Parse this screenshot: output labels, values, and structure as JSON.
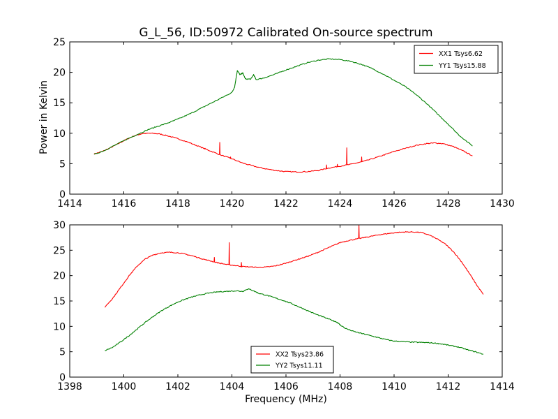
{
  "figure": {
    "title": "G_L_56, ID:50972 Calibrated On-source spectrum",
    "shared_ylabel": "Power in Kelvin",
    "shared_xlabel": "Frequency (MHz)"
  },
  "chart_data": [
    {
      "type": "line",
      "panel": "top",
      "title": "G_L_56, ID:50972 Calibrated On-source spectrum",
      "xlabel": "",
      "ylabel": "Power in Kelvin",
      "xlim": [
        1414,
        1430
      ],
      "ylim": [
        0,
        25
      ],
      "xticks": [
        "1414",
        "1416",
        "1418",
        "1420",
        "1422",
        "1424",
        "1426",
        "1428",
        "1430"
      ],
      "yticks": [
        "0",
        "5",
        "10",
        "15",
        "20",
        "25"
      ],
      "grid": false,
      "legend": "top-right",
      "series": [
        {
          "name": "XX1 Tsys6.62",
          "color": "#ff0000",
          "points": [
            [
              1414.9,
              6.6
            ],
            [
              1415.2,
              7.0
            ],
            [
              1415.5,
              7.6
            ],
            [
              1415.8,
              8.3
            ],
            [
              1416.1,
              9.0
            ],
            [
              1416.4,
              9.6
            ],
            [
              1416.7,
              9.95
            ],
            [
              1417.0,
              10.0
            ],
            [
              1417.3,
              9.9
            ],
            [
              1417.6,
              9.6
            ],
            [
              1418.0,
              9.1
            ],
            [
              1418.4,
              8.5
            ],
            [
              1418.8,
              7.8
            ],
            [
              1419.2,
              7.1
            ],
            [
              1419.6,
              6.4
            ],
            [
              1420.0,
              5.8
            ],
            [
              1420.4,
              5.1
            ],
            [
              1420.8,
              4.6
            ],
            [
              1421.2,
              4.2
            ],
            [
              1421.6,
              3.9
            ],
            [
              1422.0,
              3.7
            ],
            [
              1422.4,
              3.65
            ],
            [
              1422.8,
              3.7
            ],
            [
              1423.2,
              3.9
            ],
            [
              1423.6,
              4.3
            ],
            [
              1424.0,
              4.6
            ],
            [
              1424.4,
              4.9
            ],
            [
              1424.8,
              5.3
            ],
            [
              1425.2,
              5.8
            ],
            [
              1425.6,
              6.4
            ],
            [
              1426.0,
              7.0
            ],
            [
              1426.4,
              7.5
            ],
            [
              1426.8,
              8.0
            ],
            [
              1427.2,
              8.3
            ],
            [
              1427.5,
              8.4
            ],
            [
              1427.8,
              8.3
            ],
            [
              1428.2,
              7.8
            ],
            [
              1428.6,
              7.0
            ],
            [
              1428.9,
              6.3
            ]
          ],
          "spikes": [
            [
              1419.0,
              7.4
            ],
            [
              1419.55,
              8.5
            ],
            [
              1419.95,
              6.1
            ],
            [
              1423.5,
              4.8
            ],
            [
              1423.9,
              4.9
            ],
            [
              1424.25,
              7.6
            ],
            [
              1424.8,
              6.1
            ]
          ]
        },
        {
          "name": "YY1 Tsys15.88",
          "color": "#008000",
          "points": [
            [
              1414.9,
              6.5
            ],
            [
              1415.3,
              7.2
            ],
            [
              1415.7,
              8.1
            ],
            [
              1416.1,
              9.0
            ],
            [
              1416.5,
              9.8
            ],
            [
              1416.9,
              10.6
            ],
            [
              1417.3,
              11.2
            ],
            [
              1417.7,
              11.8
            ],
            [
              1418.1,
              12.5
            ],
            [
              1418.5,
              13.3
            ],
            [
              1418.9,
              14.2
            ],
            [
              1419.3,
              15.1
            ],
            [
              1419.7,
              16.0
            ],
            [
              1420.0,
              16.7
            ],
            [
              1420.1,
              17.6
            ],
            [
              1420.2,
              20.3
            ],
            [
              1420.3,
              19.6
            ],
            [
              1420.4,
              19.9
            ],
            [
              1420.5,
              18.9
            ],
            [
              1420.7,
              18.9
            ],
            [
              1420.8,
              19.6
            ],
            [
              1420.9,
              18.8
            ],
            [
              1421.2,
              19.1
            ],
            [
              1421.6,
              19.7
            ],
            [
              1422.0,
              20.4
            ],
            [
              1422.4,
              21.0
            ],
            [
              1422.8,
              21.6
            ],
            [
              1423.2,
              22.0
            ],
            [
              1423.6,
              22.2
            ],
            [
              1424.0,
              22.1
            ],
            [
              1424.4,
              21.8
            ],
            [
              1424.8,
              21.3
            ],
            [
              1425.2,
              20.6
            ],
            [
              1425.6,
              19.7
            ],
            [
              1426.0,
              18.7
            ],
            [
              1426.4,
              17.7
            ],
            [
              1426.8,
              16.4
            ],
            [
              1427.2,
              14.9
            ],
            [
              1427.6,
              13.2
            ],
            [
              1428.0,
              11.5
            ],
            [
              1428.4,
              9.7
            ],
            [
              1428.9,
              7.9
            ]
          ]
        }
      ]
    },
    {
      "type": "line",
      "panel": "bottom",
      "title": "",
      "xlabel": "Frequency (MHz)",
      "ylabel": "",
      "xlim": [
        1398,
        1414
      ],
      "ylim": [
        0,
        30
      ],
      "xticks": [
        "1398",
        "1400",
        "1402",
        "1404",
        "1406",
        "1408",
        "1410",
        "1412",
        "1414"
      ],
      "yticks": [
        "0",
        "5",
        "10",
        "15",
        "20",
        "25",
        "30"
      ],
      "grid": false,
      "legend": "bottom-center",
      "series": [
        {
          "name": "XX2 Tsys23.86",
          "color": "#ff0000",
          "points": [
            [
              1399.3,
              13.8
            ],
            [
              1399.6,
              15.6
            ],
            [
              1399.9,
              17.8
            ],
            [
              1400.2,
              20.0
            ],
            [
              1400.5,
              21.9
            ],
            [
              1400.8,
              23.3
            ],
            [
              1401.1,
              24.1
            ],
            [
              1401.4,
              24.5
            ],
            [
              1401.7,
              24.6
            ],
            [
              1402.0,
              24.5
            ],
            [
              1402.3,
              24.2
            ],
            [
              1402.6,
              23.8
            ],
            [
              1402.9,
              23.3
            ],
            [
              1403.2,
              22.9
            ],
            [
              1403.5,
              22.5
            ],
            [
              1403.8,
              22.2
            ],
            [
              1404.1,
              22.0
            ],
            [
              1404.4,
              21.8
            ],
            [
              1404.7,
              21.7
            ],
            [
              1405.0,
              21.6
            ],
            [
              1405.3,
              21.7
            ],
            [
              1405.6,
              21.9
            ],
            [
              1405.9,
              22.3
            ],
            [
              1406.2,
              22.8
            ],
            [
              1406.5,
              23.3
            ],
            [
              1406.8,
              23.8
            ],
            [
              1407.1,
              24.4
            ],
            [
              1407.4,
              25.1
            ],
            [
              1407.7,
              25.8
            ],
            [
              1408.0,
              26.5
            ],
            [
              1408.3,
              26.9
            ],
            [
              1408.6,
              27.2
            ],
            [
              1408.9,
              27.5
            ],
            [
              1409.2,
              27.8
            ],
            [
              1409.5,
              28.1
            ],
            [
              1409.8,
              28.3
            ],
            [
              1410.1,
              28.5
            ],
            [
              1410.4,
              28.6
            ],
            [
              1410.7,
              28.6
            ],
            [
              1411.0,
              28.5
            ],
            [
              1411.3,
              28.0
            ],
            [
              1411.6,
              27.2
            ],
            [
              1411.9,
              26.2
            ],
            [
              1412.2,
              24.7
            ],
            [
              1412.5,
              22.7
            ],
            [
              1412.8,
              20.3
            ],
            [
              1413.1,
              17.8
            ],
            [
              1413.3,
              16.3
            ]
          ],
          "spikes": [
            [
              1403.35,
              23.6
            ],
            [
              1403.9,
              26.5
            ],
            [
              1404.35,
              22.6
            ],
            [
              1408.7,
              30.0
            ]
          ]
        },
        {
          "name": "YY2 Tsys11.11",
          "color": "#008000",
          "points": [
            [
              1399.3,
              5.2
            ],
            [
              1399.6,
              5.9
            ],
            [
              1399.9,
              7.0
            ],
            [
              1400.2,
              8.2
            ],
            [
              1400.5,
              9.5
            ],
            [
              1400.8,
              10.8
            ],
            [
              1401.1,
              12.0
            ],
            [
              1401.4,
              13.1
            ],
            [
              1401.7,
              14.0
            ],
            [
              1402.0,
              14.8
            ],
            [
              1402.3,
              15.4
            ],
            [
              1402.6,
              15.9
            ],
            [
              1402.9,
              16.3
            ],
            [
              1403.2,
              16.6
            ],
            [
              1403.5,
              16.8
            ],
            [
              1403.8,
              16.9
            ],
            [
              1404.1,
              17.0
            ],
            [
              1404.4,
              16.9
            ],
            [
              1404.6,
              17.4
            ],
            [
              1404.8,
              17.0
            ],
            [
              1405.0,
              16.5
            ],
            [
              1405.3,
              16.1
            ],
            [
              1405.6,
              15.6
            ],
            [
              1405.9,
              15.1
            ],
            [
              1406.2,
              14.5
            ],
            [
              1406.5,
              13.8
            ],
            [
              1406.8,
              13.1
            ],
            [
              1407.1,
              12.4
            ],
            [
              1407.4,
              11.8
            ],
            [
              1407.7,
              11.2
            ],
            [
              1407.9,
              10.8
            ],
            [
              1408.0,
              10.3
            ],
            [
              1408.2,
              9.6
            ],
            [
              1408.5,
              9.0
            ],
            [
              1408.8,
              8.6
            ],
            [
              1409.1,
              8.2
            ],
            [
              1409.4,
              7.8
            ],
            [
              1409.7,
              7.4
            ],
            [
              1410.0,
              7.1
            ],
            [
              1410.3,
              7.0
            ],
            [
              1410.6,
              6.9
            ],
            [
              1410.9,
              6.85
            ],
            [
              1411.2,
              6.8
            ],
            [
              1411.5,
              6.7
            ],
            [
              1411.8,
              6.5
            ],
            [
              1412.1,
              6.2
            ],
            [
              1412.4,
              5.9
            ],
            [
              1412.7,
              5.4
            ],
            [
              1413.0,
              5.0
            ],
            [
              1413.3,
              4.5
            ]
          ]
        }
      ]
    }
  ]
}
